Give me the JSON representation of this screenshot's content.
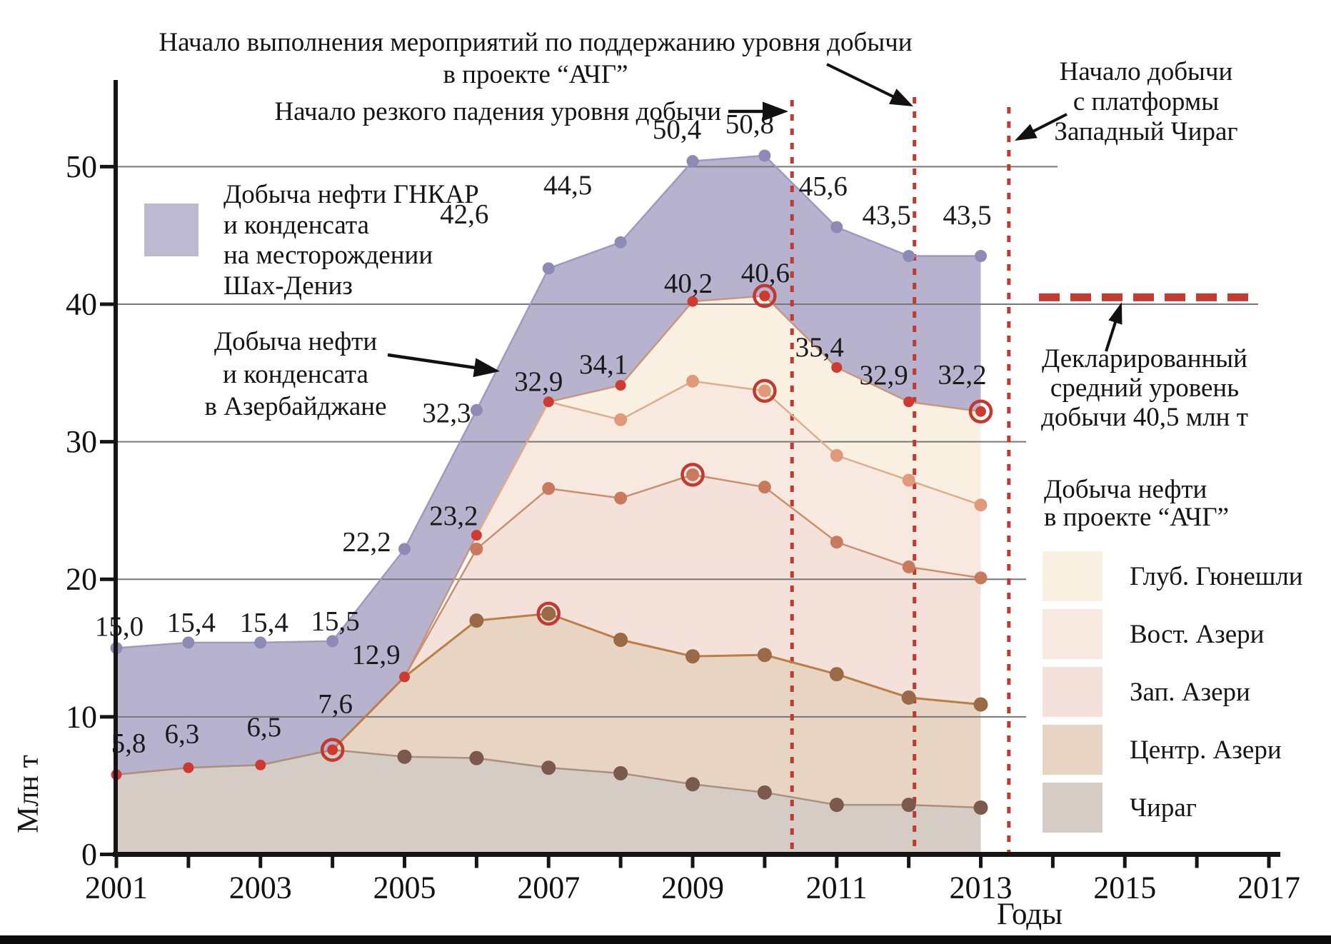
{
  "chart_data": {
    "type": "area",
    "xlabel": "Годы",
    "ylabel": "Млн т",
    "xlim": [
      2001,
      2017
    ],
    "ylim": [
      0,
      55
    ],
    "x_tick_labels": [
      "2001",
      "2003",
      "2005",
      "2007",
      "2009",
      "2011",
      "2013",
      "2015",
      "2017"
    ],
    "y_tick_labels": [
      "0",
      "10",
      "20",
      "30",
      "40",
      "50"
    ],
    "grid": true,
    "series": [
      {
        "id": "az_total",
        "name": "Добыча нефти и конденсата в Азербайджане",
        "start_year": 2001,
        "values": [
          15.0,
          15.4,
          15.4,
          15.5,
          22.2,
          32.3,
          42.6,
          44.5,
          50.4,
          50.8,
          45.6,
          43.5,
          43.5
        ],
        "labels": [
          "15,0",
          "15,4",
          "15,4",
          "15,5",
          "22,2",
          "32,3",
          "42,6",
          "44,5",
          "50,4",
          "50,8",
          "45,6",
          "43,5",
          "43,5"
        ],
        "circled_years": []
      },
      {
        "id": "acg_total",
        "name": "Добыча нефти в проекте “АЧГ” (всего)",
        "start_year": 2001,
        "values": [
          5.8,
          6.3,
          6.5,
          7.6,
          12.9,
          23.2,
          32.9,
          34.1,
          40.2,
          40.6,
          35.4,
          32.9,
          32.2
        ],
        "labels": [
          "5,8",
          "6,3",
          "6,5",
          "7,6",
          "12,9",
          "23,2",
          "32,9",
          "34,1",
          "40,2",
          "40,6",
          "35,4",
          "32,9",
          "32,2"
        ],
        "circled_years": [
          2004,
          2010,
          2013
        ]
      },
      {
        "id": "vost_top",
        "name": "Граница Вост. Азери / Глуб. Гюнешли",
        "start_year": 2006,
        "values": [
          23.2,
          32.9,
          31.6,
          34.4,
          33.7,
          29.0,
          27.2,
          25.4
        ],
        "labels": [],
        "circled_years": [
          2010
        ]
      },
      {
        "id": "zap_top",
        "name": "Граница Зап. Азери / Вост. Азери",
        "start_year": 2005,
        "values": [
          12.9,
          22.2,
          26.6,
          25.9,
          27.6,
          26.7,
          22.7,
          20.9,
          20.1
        ],
        "labels": [],
        "circled_years": [
          2009
        ]
      },
      {
        "id": "centr_top",
        "name": "Граница Центр. Азери / Зап. Азери",
        "start_year": 2004,
        "values": [
          7.6,
          12.9,
          17.0,
          17.5,
          15.6,
          14.4,
          14.5,
          13.1,
          11.4,
          10.9
        ],
        "labels": [],
        "circled_years": [
          2007
        ]
      },
      {
        "id": "chirag",
        "name": "Чираг",
        "start_year": 2001,
        "values": [
          5.8,
          6.3,
          6.5,
          7.6,
          7.1,
          7.0,
          6.3,
          5.9,
          5.1,
          4.5,
          3.6,
          3.6,
          3.4
        ],
        "labels": [],
        "circled_years": []
      }
    ],
    "bands": [
      {
        "name": "Чираг",
        "top": "chirag",
        "bottom": null,
        "color": "#d6ccc6"
      },
      {
        "name": "Центр. Азери",
        "top": "centr_top",
        "bottom": "chirag",
        "color": "#e8d4c2"
      },
      {
        "name": "Зап. Азери",
        "top": "zap_top",
        "bottom": "centr_top",
        "color": "#f4e1d9"
      },
      {
        "name": "Вост. Азери",
        "top": "vost_top",
        "bottom": "zap_top",
        "color": "#f7e9df"
      },
      {
        "name": "Глуб. Гюнешли",
        "top": "acg_total",
        "bottom": "vost_top",
        "color": "#faf0e1"
      },
      {
        "name": "Добыча нефти ГНКАР и конденсата на месторождении Шах-Дениз",
        "top": "az_total",
        "bottom": "acg_total",
        "color": "#b7b3cf"
      }
    ],
    "event_lines": [
      {
        "year": 2010.38,
        "label": "Начало резкого падения уровня добычи"
      },
      {
        "year": 2012.08,
        "label": "Начало выполнения мероприятий по поддержанию уровня добычи в проекте “АЧГ”"
      },
      {
        "year": 2013.39,
        "label": "Начало добычи с платформы Западный Чираг"
      }
    ],
    "declared_level": {
      "value": 40.5,
      "label": "Декларированный средний уровень добычи 40,5 млн т"
    }
  },
  "annotations": {
    "maintain_line1": "Начало выполнения мероприятий по поддержанию уровня добычи",
    "maintain_line2": "в проекте “АЧГ”",
    "decline": "Начало резкого падения уровня добычи",
    "west_chirag_line1": "Начало добычи",
    "west_chirag_line2": "с платформы",
    "west_chirag_line3": "Западный Чираг",
    "declared_line1": "Декларированный",
    "declared_line2": "средний уровень",
    "declared_line3": "добычи 40,5 млн т"
  },
  "legend_shah_deniz": {
    "color": "#bdb9d2",
    "line1": "Добыча нефти ГНКАР",
    "line2": "и конденсата",
    "line3": "на месторождении",
    "line4": "Шах-Дениз"
  },
  "annotation_azerbaijan": {
    "line1": "Добыча нефти",
    "line2": "и конденсата",
    "line3": "в Азербайджане"
  },
  "legend_acg": {
    "title_line1": "Добыча нефти",
    "title_line2": "в проекте “АЧГ”",
    "items": [
      {
        "label": "Глуб. Гюнешли",
        "color": "#faf0e1"
      },
      {
        "label": "Вост. Азери",
        "color": "#f7e9df"
      },
      {
        "label": "Зап. Азери",
        "color": "#f4e1d9"
      },
      {
        "label": "Центр. Азери",
        "color": "#e8d4c2"
      },
      {
        "label": "Чираг",
        "color": "#d6ccc6"
      }
    ]
  },
  "colors": {
    "accent_red": "#c73a30",
    "purple_area": "#b7b3cf",
    "grid": "#777777",
    "axis": "#151515"
  }
}
